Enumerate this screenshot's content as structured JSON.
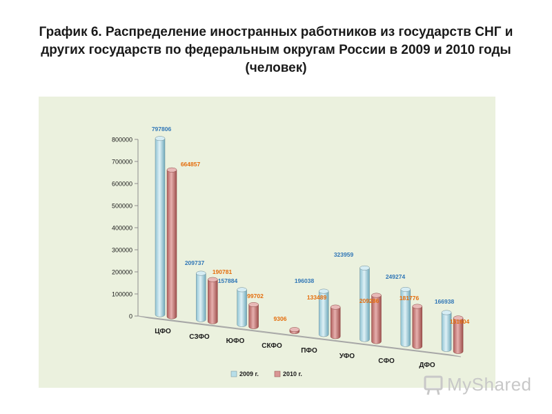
{
  "title": "График 6. Распределение иностранных работников из государств СНГ и других государств по федеральным округам России в 2009 и 2010 годы (человек)",
  "watermark": "MyShared",
  "chart_data": {
    "type": "bar",
    "style": "3d-cylinder",
    "categories": [
      "ЦФО",
      "СЗФО",
      "ЮФО",
      "СКФО",
      "ПФО",
      "УФО",
      "СФО",
      "ДФО"
    ],
    "series": [
      {
        "name": "2009 г.",
        "color": "#b7dee8",
        "label_color": "#2e75b6",
        "values": [
          797806,
          209737,
          157884,
          null,
          196038,
          323959,
          249274,
          166938
        ]
      },
      {
        "name": "2010 г.",
        "color": "#d99694",
        "label_color": "#e46c0a",
        "values": [
          664857,
          190781,
          99702,
          9306,
          133489,
          209286,
          181776,
          151604
        ]
      }
    ],
    "yticks": [
      0,
      100000,
      200000,
      300000,
      400000,
      500000,
      600000,
      700000,
      800000
    ],
    "ylim": [
      0,
      800000
    ],
    "legend_position": "bottom",
    "background": "#ebf1de"
  }
}
